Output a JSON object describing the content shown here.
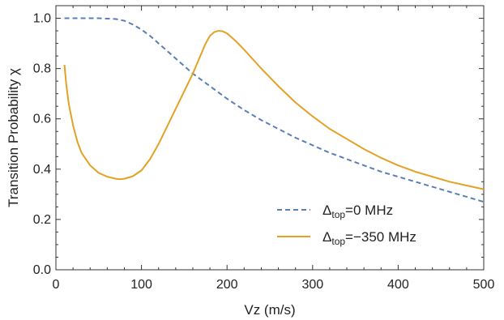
{
  "chart_data": {
    "type": "line",
    "xlabel": "Vz (m/s)",
    "ylabel": "Transition Probability χ",
    "xlim": [
      0,
      500
    ],
    "ylim": [
      0,
      1.05
    ],
    "x_ticks": [
      0,
      100,
      200,
      300,
      400,
      500
    ],
    "y_ticks": [
      0.0,
      0.2,
      0.4,
      0.6,
      0.8,
      1.0
    ],
    "x_tick_labels": [
      "0",
      "100",
      "200",
      "300",
      "400",
      "500"
    ],
    "y_tick_labels": [
      "0.0",
      "0.2",
      "0.4",
      "0.6",
      "0.8",
      "1.0"
    ],
    "grid": false,
    "legend_position": "bottom-right",
    "series": [
      {
        "name_main": "Δ",
        "name_sub": "top",
        "name_rest": "=0 MHz",
        "color": "#5b7fb4",
        "dash": "dashed",
        "x": [
          10,
          30,
          50,
          70,
          80,
          90,
          100,
          110,
          120,
          130,
          140,
          150,
          160,
          170,
          180,
          190,
          200,
          220,
          240,
          260,
          280,
          300,
          320,
          340,
          360,
          380,
          400,
          420,
          440,
          460,
          480,
          500
        ],
        "y": [
          1.0,
          1.0,
          1.0,
          0.997,
          0.99,
          0.975,
          0.955,
          0.93,
          0.9,
          0.87,
          0.84,
          0.81,
          0.78,
          0.755,
          0.73,
          0.705,
          0.68,
          0.635,
          0.595,
          0.56,
          0.525,
          0.495,
          0.465,
          0.44,
          0.415,
          0.39,
          0.37,
          0.35,
          0.33,
          0.31,
          0.29,
          0.27
        ]
      },
      {
        "name_main": "Δ",
        "name_sub": "top",
        "name_rest": "=−350 MHz",
        "color": "#e2a226",
        "dash": "solid",
        "x": [
          10,
          12,
          15,
          20,
          25,
          30,
          40,
          50,
          60,
          70,
          75,
          80,
          90,
          100,
          110,
          120,
          130,
          140,
          150,
          160,
          165,
          170,
          175,
          180,
          185,
          190,
          195,
          200,
          210,
          220,
          240,
          260,
          280,
          300,
          320,
          340,
          360,
          380,
          400,
          420,
          440,
          460,
          480,
          500
        ],
        "y": [
          0.815,
          0.74,
          0.66,
          0.575,
          0.51,
          0.465,
          0.415,
          0.385,
          0.37,
          0.362,
          0.36,
          0.362,
          0.372,
          0.395,
          0.44,
          0.5,
          0.57,
          0.64,
          0.71,
          0.78,
          0.82,
          0.86,
          0.9,
          0.93,
          0.945,
          0.95,
          0.948,
          0.94,
          0.91,
          0.875,
          0.8,
          0.73,
          0.665,
          0.61,
          0.56,
          0.52,
          0.48,
          0.445,
          0.415,
          0.39,
          0.37,
          0.35,
          0.335,
          0.32
        ]
      }
    ]
  }
}
